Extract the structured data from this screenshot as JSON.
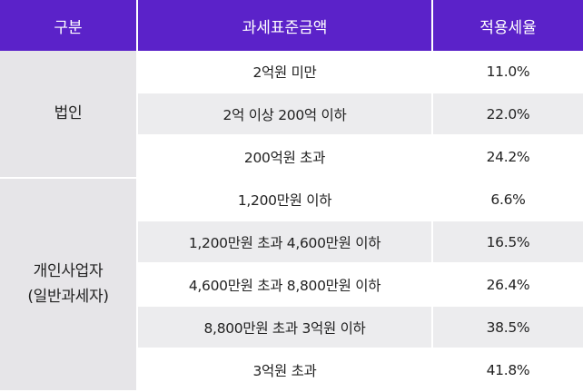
{
  "header": {
    "col1": "구분",
    "col2": "과세표준금액",
    "col3": "적용세율"
  },
  "groups": [
    {
      "category": [
        "법인"
      ],
      "rows": [
        {
          "range": "2억원 미만",
          "rate": "11.0%"
        },
        {
          "range": "2억 이상 200억 이하",
          "rate": "22.0%"
        },
        {
          "range": "200억원 초과",
          "rate": "24.2%"
        }
      ]
    },
    {
      "category": [
        "개인사업자",
        "(일반과세자)"
      ],
      "rows": [
        {
          "range": "1,200만원 이하",
          "rate": "6.6%"
        },
        {
          "range": "1,200만원 초과 4,600만원 이하",
          "rate": "16.5%"
        },
        {
          "range": "4,600만원 초과 8,800만원 이하",
          "rate": "26.4%"
        },
        {
          "range": "8,800만원 초과 3억원 이하",
          "rate": "38.5%"
        },
        {
          "range": "3억원 초과",
          "rate": "41.8%"
        }
      ]
    }
  ],
  "colors": {
    "header_bg": "#5b22c9",
    "category_bg": "#e6e5e8",
    "stripe_bg": "#ececee"
  }
}
